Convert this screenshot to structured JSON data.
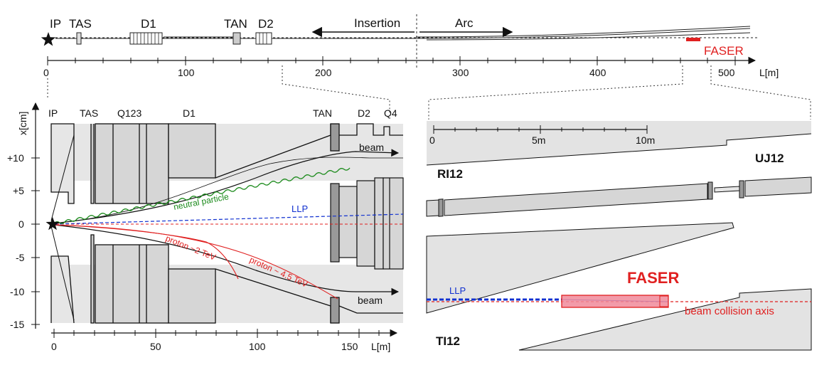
{
  "top": {
    "components": [
      "IP",
      "TAS",
      "D1",
      "TAN",
      "D2"
    ],
    "insertion_label": "Insertion",
    "arc_label": "Arc",
    "faser_label": "FASER",
    "ticks": [
      "0",
      "100",
      "200",
      "300",
      "400",
      "500"
    ],
    "axis_unit": "L[m]",
    "colors": {
      "faser": "#e02020"
    }
  },
  "left": {
    "components": [
      "IP",
      "TAS",
      "Q123",
      "D1",
      "TAN",
      "D2",
      "Q4"
    ],
    "y_axis_label": "x[cm]",
    "y_ticks": [
      "+10",
      "+5",
      "0",
      "-5",
      "-10",
      "-15"
    ],
    "x_ticks": [
      "0",
      "50",
      "100",
      "150"
    ],
    "x_unit": "L[m]",
    "beam_label_upper": "beam",
    "beam_label_lower": "beam",
    "neutral_label": "neutral particle",
    "llp_label": "LLP",
    "proton1_label": "proton ~2 TeV",
    "proton2_label": "proton ~ 4.5 TeV",
    "colors": {
      "neutral": "#1a8a1a",
      "llp": "#1030d0",
      "proton": "#e02020"
    }
  },
  "right": {
    "scale_ticks": [
      "0",
      "5m",
      "10m"
    ],
    "ri12_label": "RI12",
    "uj12_label": "UJ12",
    "ti12_label": "TI12",
    "faser_label": "FASER",
    "llp_label": "LLP",
    "axis_label": "beam collision axis",
    "colors": {
      "faser": "#e02020",
      "llp": "#1030d0"
    }
  }
}
